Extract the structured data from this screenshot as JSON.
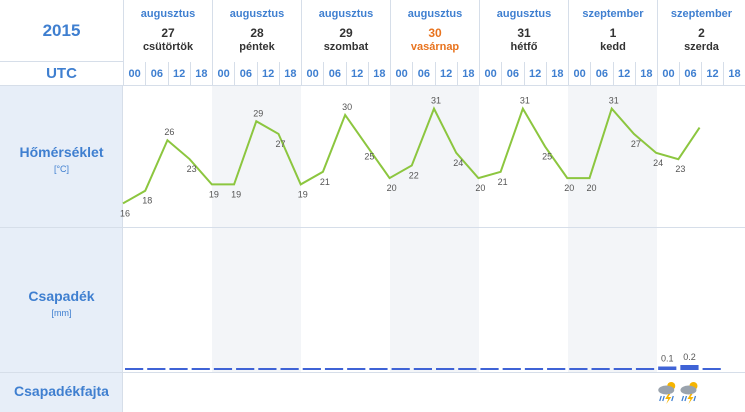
{
  "year": "2015",
  "utc_label": "UTC",
  "days": [
    {
      "month": "augusztus",
      "day": "27",
      "name": "csütörtök",
      "weekend": false,
      "hours": [
        "00",
        "06",
        "12",
        "18"
      ]
    },
    {
      "month": "augusztus",
      "day": "28",
      "name": "péntek",
      "weekend": false,
      "hours": [
        "00",
        "06",
        "12",
        "18"
      ]
    },
    {
      "month": "augusztus",
      "day": "29",
      "name": "szombat",
      "weekend": false,
      "hours": [
        "00",
        "06",
        "12",
        "18"
      ]
    },
    {
      "month": "augusztus",
      "day": "30",
      "name": "vasárnap",
      "weekend": true,
      "hours": [
        "00",
        "06",
        "12",
        "18"
      ]
    },
    {
      "month": "augusztus",
      "day": "31",
      "name": "hétfő",
      "weekend": false,
      "hours": [
        "00",
        "06",
        "12",
        "18"
      ]
    },
    {
      "month": "szeptember",
      "day": "1",
      "name": "kedd",
      "weekend": false,
      "hours": [
        "00",
        "06",
        "12",
        "18"
      ]
    },
    {
      "month": "szeptember",
      "day": "2",
      "name": "szerda",
      "weekend": false,
      "hours": [
        "00",
        "06",
        "12",
        "18"
      ]
    }
  ],
  "rows": {
    "temperature": {
      "label": "Hőmérséklet",
      "unit": "[°C]"
    },
    "precip": {
      "label": "Csapadék",
      "unit": "[mm]"
    },
    "precip_type": {
      "label": "Csapadékfajta"
    }
  },
  "colors": {
    "temp_line": "#8cc63f",
    "precip_bar": "#3f63d6",
    "accent": "#3f7fd0",
    "weekend": "#e8731e"
  },
  "chart_data": {
    "type": "line",
    "title": "",
    "x": [
      "08-27 00",
      "08-27 06",
      "08-27 12",
      "08-27 18",
      "08-28 00",
      "08-28 06",
      "08-28 12",
      "08-28 18",
      "08-29 00",
      "08-29 06",
      "08-29 12",
      "08-29 18",
      "08-30 00",
      "08-30 06",
      "08-30 12",
      "08-30 18",
      "08-31 00",
      "08-31 06",
      "08-31 12",
      "08-31 18",
      "09-01 00",
      "09-01 06",
      "09-01 12",
      "09-01 18",
      "09-02 00",
      "09-02 06",
      "09-02 12"
    ],
    "series": [
      {
        "name": "Hőmérséklet",
        "values": [
          16,
          18,
          26,
          23,
          19,
          19,
          29,
          27,
          19,
          21,
          30,
          25,
          20,
          22,
          31,
          24,
          20,
          21,
          31,
          25,
          20,
          20,
          31,
          27,
          24,
          23,
          null
        ],
        "end_value": 28
      },
      {
        "name": "Csapadék",
        "values": [
          0,
          0,
          0,
          0,
          0,
          0,
          0,
          0,
          0,
          0,
          0,
          0,
          0,
          0,
          0,
          0,
          0,
          0,
          0,
          0,
          0,
          0,
          0,
          0,
          0.1,
          0.2,
          0
        ]
      }
    ],
    "precip_labels": [
      "",
      "",
      "",
      "",
      "",
      "",
      "",
      "",
      "",
      "",
      "",
      "",
      "",
      "",
      "",
      "",
      "",
      "",
      "",
      "",
      "",
      "",
      "",
      "",
      "0.1",
      "0.2",
      ""
    ],
    "precip_type_icons": [
      "",
      "",
      "",
      "",
      "",
      "",
      "",
      "",
      "",
      "",
      "",
      "",
      "",
      "",
      "",
      "",
      "",
      "",
      "",
      "",
      "",
      "",
      "",
      "",
      "rain-thunder-icon",
      "rain-thunder-icon",
      ""
    ],
    "ylim": [
      14,
      33
    ],
    "grid": false
  }
}
